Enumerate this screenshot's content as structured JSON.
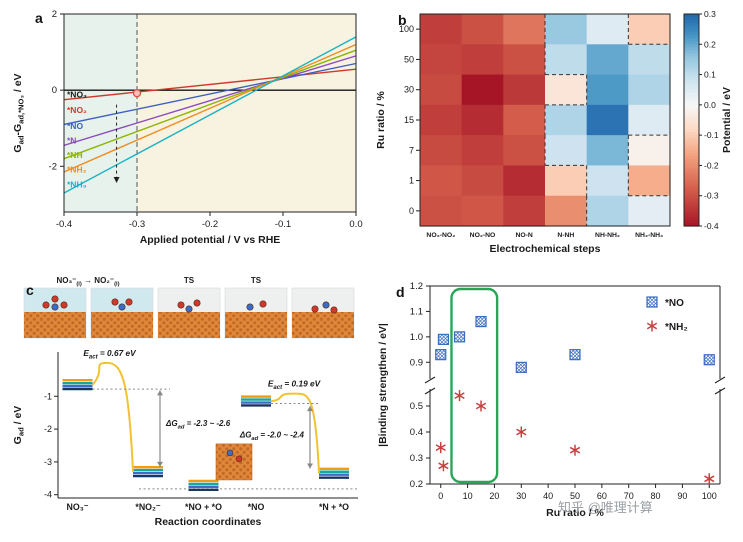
{
  "watermark": "知乎 @唯理计算",
  "chart_data": [
    {
      "id": "a",
      "panel_label": "a",
      "type": "line",
      "xlabel": "Applied potential / V vs RHE",
      "ylabel": "G_{ad}-G_{ad,*NO₃} / eV",
      "xlim": [
        -0.4,
        0.0
      ],
      "ylim": [
        -3.2,
        2.0
      ],
      "xticks": [
        -0.4,
        -0.3,
        -0.2,
        -0.1,
        0.0
      ],
      "yticks": [
        2,
        0,
        -2
      ],
      "vline_x": -0.3,
      "hline_y": 0,
      "bg_left": "#e7f2ec",
      "bg_right": "#f8f2e0",
      "marker": {
        "x": -0.3,
        "y": -0.08,
        "color": "#d94f3d"
      },
      "arrow": {
        "x": -0.328,
        "y_from": -0.38,
        "y_to": -2.28
      },
      "series": [
        {
          "name": "*NO₃",
          "color": "#1a1a1a",
          "y_start": 0.0,
          "y_end": 0.0,
          "label_y": -0.12
        },
        {
          "name": "*NO₂",
          "color": "#cf3a28",
          "y_start": -0.25,
          "y_end": 0.55,
          "label_y": -0.52
        },
        {
          "name": "*NO",
          "color": "#3b5fc0",
          "y_start": -0.9,
          "y_end": 0.7,
          "label_y": -0.94
        },
        {
          "name": "*N",
          "color": "#8a4bbf",
          "y_start": -1.45,
          "y_end": 0.9,
          "label_y": -1.32
        },
        {
          "name": "*NH",
          "color": "#8db600",
          "y_start": -1.8,
          "y_end": 1.05,
          "label_y": -1.7
        },
        {
          "name": "*NH₂",
          "color": "#f08c1e",
          "y_start": -2.15,
          "y_end": 1.2,
          "label_y": -2.08
        },
        {
          "name": "*NH₃",
          "color": "#17b3c4",
          "y_start": -2.7,
          "y_end": 1.4,
          "label_y": -2.48
        }
      ]
    },
    {
      "id": "b",
      "panel_label": "b",
      "type": "heatmap",
      "xlabel": "Electrochemical steps",
      "ylabel": "Ru ratio / %",
      "colorbar_label": "Potential / eV",
      "x_categories": [
        "NO₃-NO₂",
        "NO₂-NO",
        "NO-N",
        "N-NH",
        "NH-NH₂",
        "NH₂-NH₃"
      ],
      "y_categories": [
        "100",
        "50",
        "30",
        "15",
        "7",
        "1",
        "0"
      ],
      "vmin": -0.4,
      "vmax": 0.3,
      "colorbar_ticks": [
        0.3,
        0.2,
        0.1,
        0.0,
        -0.1,
        -0.2,
        -0.3,
        -0.4
      ],
      "values": [
        [
          -0.33,
          -0.3,
          -0.24,
          0.15,
          0.05,
          -0.1
        ],
        [
          -0.32,
          -0.33,
          -0.3,
          0.1,
          0.2,
          0.1
        ],
        [
          -0.31,
          -0.4,
          -0.34,
          -0.05,
          0.22,
          0.12
        ],
        [
          -0.33,
          -0.36,
          -0.28,
          0.12,
          0.28,
          0.05
        ],
        [
          -0.31,
          -0.33,
          -0.3,
          0.08,
          0.18,
          -0.02
        ],
        [
          -0.29,
          -0.31,
          -0.36,
          -0.1,
          0.08,
          -0.15
        ],
        [
          -0.3,
          -0.29,
          -0.33,
          -0.2,
          0.12,
          0.04
        ]
      ]
    },
    {
      "id": "c",
      "panel_label": "c",
      "type": "reaction",
      "xlabel": "Reaction coordinates",
      "ylabel": "G_{ad} / eV",
      "ylim": [
        -4.1,
        0.35
      ],
      "yticks": [
        -1,
        -2,
        -3,
        -4
      ],
      "x_categories": [
        "NO₃⁻",
        "*NO₂⁻",
        "*NO + *O",
        "*NO",
        "*N + *O"
      ],
      "tiles": {
        "labels": [
          "NO₃⁻_{(l)} → NO₂⁻_{(l)}",
          "TS",
          "TS"
        ]
      },
      "band_colors": [
        "#f39c12",
        "#18a79e",
        "#3b6cc7",
        "#17375e"
      ],
      "levels": [
        {
          "name": "NO₃⁻",
          "x": 0.065,
          "value": -0.65
        },
        {
          "name": "*NO₂⁻",
          "x": 0.3,
          "value": -3.3
        },
        {
          "name": "*NO + *O",
          "x": 0.485,
          "value": -3.72
        },
        {
          "name": "*NO",
          "x": 0.66,
          "value": -1.15
        },
        {
          "name": "*N + *O",
          "x": 0.92,
          "value": -3.35
        }
      ],
      "barriers": [
        {
          "label": "E_{act} = 0.67 eV",
          "from": 0,
          "to": 1,
          "peak_x": 0.165,
          "peak_value": 0.02
        },
        {
          "label": "E_{act} = 0.19 eV",
          "from": 3,
          "to": 4,
          "peak_x": 0.78,
          "peak_value": -0.92
        }
      ],
      "dg_labels": [
        "ΔG_{ad} = -2.3 ~ -2.6",
        "ΔG_{ad} = -2.0 ~ -2.4"
      ],
      "baseline": -3.82
    },
    {
      "id": "d",
      "panel_label": "d",
      "type": "scatter",
      "xlabel": "Ru ratio / %",
      "ylabel": "|Binding strengthen / eV|",
      "xlim": [
        -4,
        104
      ],
      "xticks": [
        0,
        10,
        20,
        30,
        40,
        50,
        60,
        70,
        80,
        90,
        100
      ],
      "yticks_upper": [
        1.2,
        1.1,
        1.0,
        0.9
      ],
      "yticks_lower": [
        0.5,
        0.4,
        0.3,
        0.2
      ],
      "y_break": [
        0.55,
        0.85
      ],
      "highlight_box": {
        "x0": 4,
        "x1": 21,
        "color": "#2aa558"
      },
      "series": [
        {
          "name": "*NO",
          "marker": "hatched-square",
          "color": "#3a6cc0",
          "points": [
            [
              0,
              0.93
            ],
            [
              1,
              0.99
            ],
            [
              7,
              1.0
            ],
            [
              15,
              1.06
            ],
            [
              30,
              0.88
            ],
            [
              50,
              0.93
            ],
            [
              100,
              0.91
            ]
          ]
        },
        {
          "name": "*NH₂",
          "marker": "asterisk",
          "color": "#c94040",
          "points": [
            [
              0,
              0.34
            ],
            [
              1,
              0.27
            ],
            [
              7,
              0.54
            ],
            [
              15,
              0.5
            ],
            [
              30,
              0.4
            ],
            [
              50,
              0.33
            ],
            [
              100,
              0.22
            ]
          ]
        }
      ]
    }
  ]
}
